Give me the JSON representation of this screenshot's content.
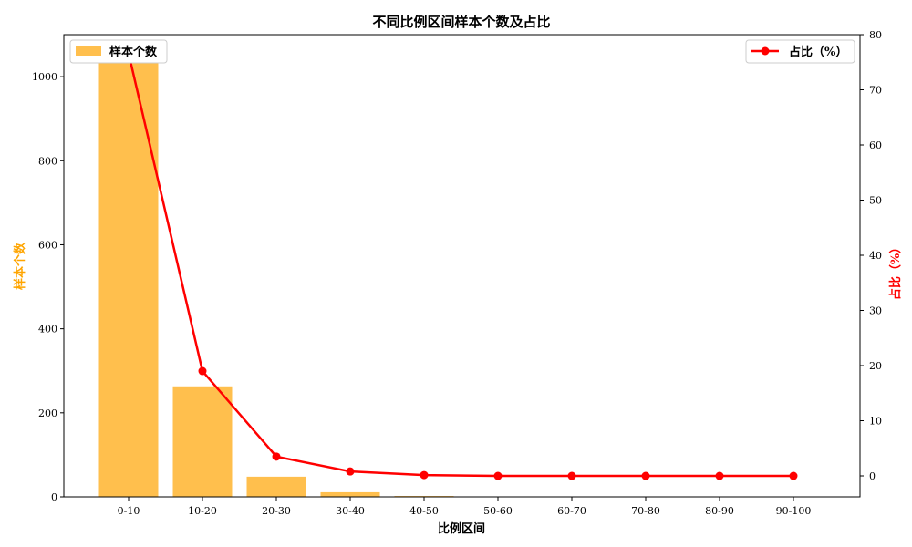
{
  "chart_data": {
    "type": "bar",
    "title": "不同比例区间样本个数及占比",
    "xlabel": "比例区间",
    "categories": [
      "0-10",
      "10-20",
      "20-30",
      "30-40",
      "40-50",
      "50-60",
      "60-70",
      "70-80",
      "80-90",
      "90-100"
    ],
    "series": [
      {
        "name": "样本个数",
        "type": "bar",
        "axis": "left",
        "color": "#FFBF4D",
        "values": [
          1062,
          263,
          48,
          11,
          2,
          0,
          0,
          0,
          0,
          0
        ]
      },
      {
        "name": "占比（%）",
        "type": "line",
        "axis": "right",
        "color": "#FF0000",
        "values": [
          76.6,
          19.0,
          3.5,
          0.8,
          0.15,
          0.0,
          0.0,
          0.0,
          0.0,
          0.0
        ]
      }
    ],
    "y_left": {
      "label": "样本个数",
      "label_color": "#FFA500",
      "ylim": [
        0,
        1100
      ],
      "ticks": [
        "0",
        "200",
        "400",
        "600",
        "800",
        "1000"
      ]
    },
    "y_right": {
      "label": "占比（%）",
      "label_color": "#FF0000",
      "ylim": [
        -3.8,
        80
      ],
      "ticks": [
        "0",
        "10",
        "20",
        "30",
        "40",
        "50",
        "60",
        "70",
        "80"
      ]
    },
    "legend_left": {
      "placement": "top-left",
      "label": "样本个数"
    },
    "legend_right": {
      "placement": "top-right",
      "label": "占比（%）"
    },
    "grid": false
  }
}
